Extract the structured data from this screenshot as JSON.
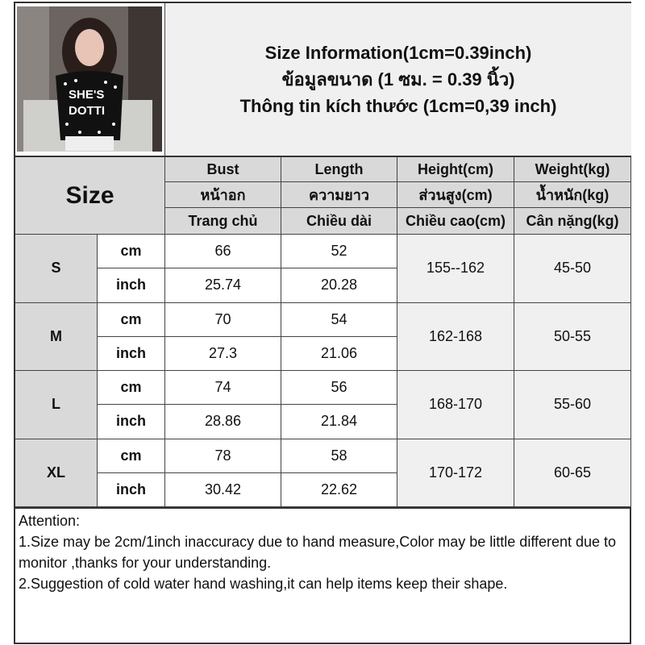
{
  "title": {
    "line1": "Size Information(1cm=0.39inch)",
    "line2": "ข้อมูลขนาด (1 ซม. = 0.39 นิ้ว)",
    "line3": "Thông tin kích thước (1cm=0,39 inch)"
  },
  "photo": {
    "shirt_text": "SHE'S DOTTI"
  },
  "table": {
    "size_label": "Size",
    "columns": [
      {
        "en": "Bust",
        "th": "หน้าอก",
        "vi": "Trang chủ"
      },
      {
        "en": "Length",
        "th": "ความยาว",
        "vi": "Chiều dài"
      },
      {
        "en": "Height(cm)",
        "th": "ส่วนสูง(cm)",
        "vi": "Chiều cao(cm)"
      },
      {
        "en": "Weight(kg)",
        "th": "น้ำหนัก(kg)",
        "vi": "Cân nặng(kg)"
      }
    ],
    "rows": [
      {
        "size": "S",
        "cm_label": "cm",
        "inch_label": "inch",
        "bust_cm": "66",
        "length_cm": "52",
        "bust_inch": "25.74",
        "length_inch": "20.28",
        "height": "155--162",
        "weight": "45-50"
      },
      {
        "size": "M",
        "cm_label": "cm",
        "inch_label": "inch",
        "bust_cm": "70",
        "length_cm": "54",
        "bust_inch": "27.3",
        "length_inch": "21.06",
        "height": "162-168",
        "weight": "50-55"
      },
      {
        "size": "L",
        "cm_label": "cm",
        "inch_label": "inch",
        "bust_cm": "74",
        "length_cm": "56",
        "bust_inch": "28.86",
        "length_inch": "21.84",
        "height": "168-170",
        "weight": "55-60"
      },
      {
        "size": "XL",
        "cm_label": "cm",
        "inch_label": "inch",
        "bust_cm": "78",
        "length_cm": "58",
        "bust_inch": "30.42",
        "length_inch": "22.62",
        "height": "170-172",
        "weight": "60-65"
      }
    ]
  },
  "attention": {
    "heading": "Attention:",
    "note1": "1.Size may be 2cm/1inch inaccuracy due to hand measure,Color may be little different due to monitor ,thanks for your understanding.",
    "note2": "2.Suggestion of cold water hand washing,it can help items keep their shape."
  }
}
